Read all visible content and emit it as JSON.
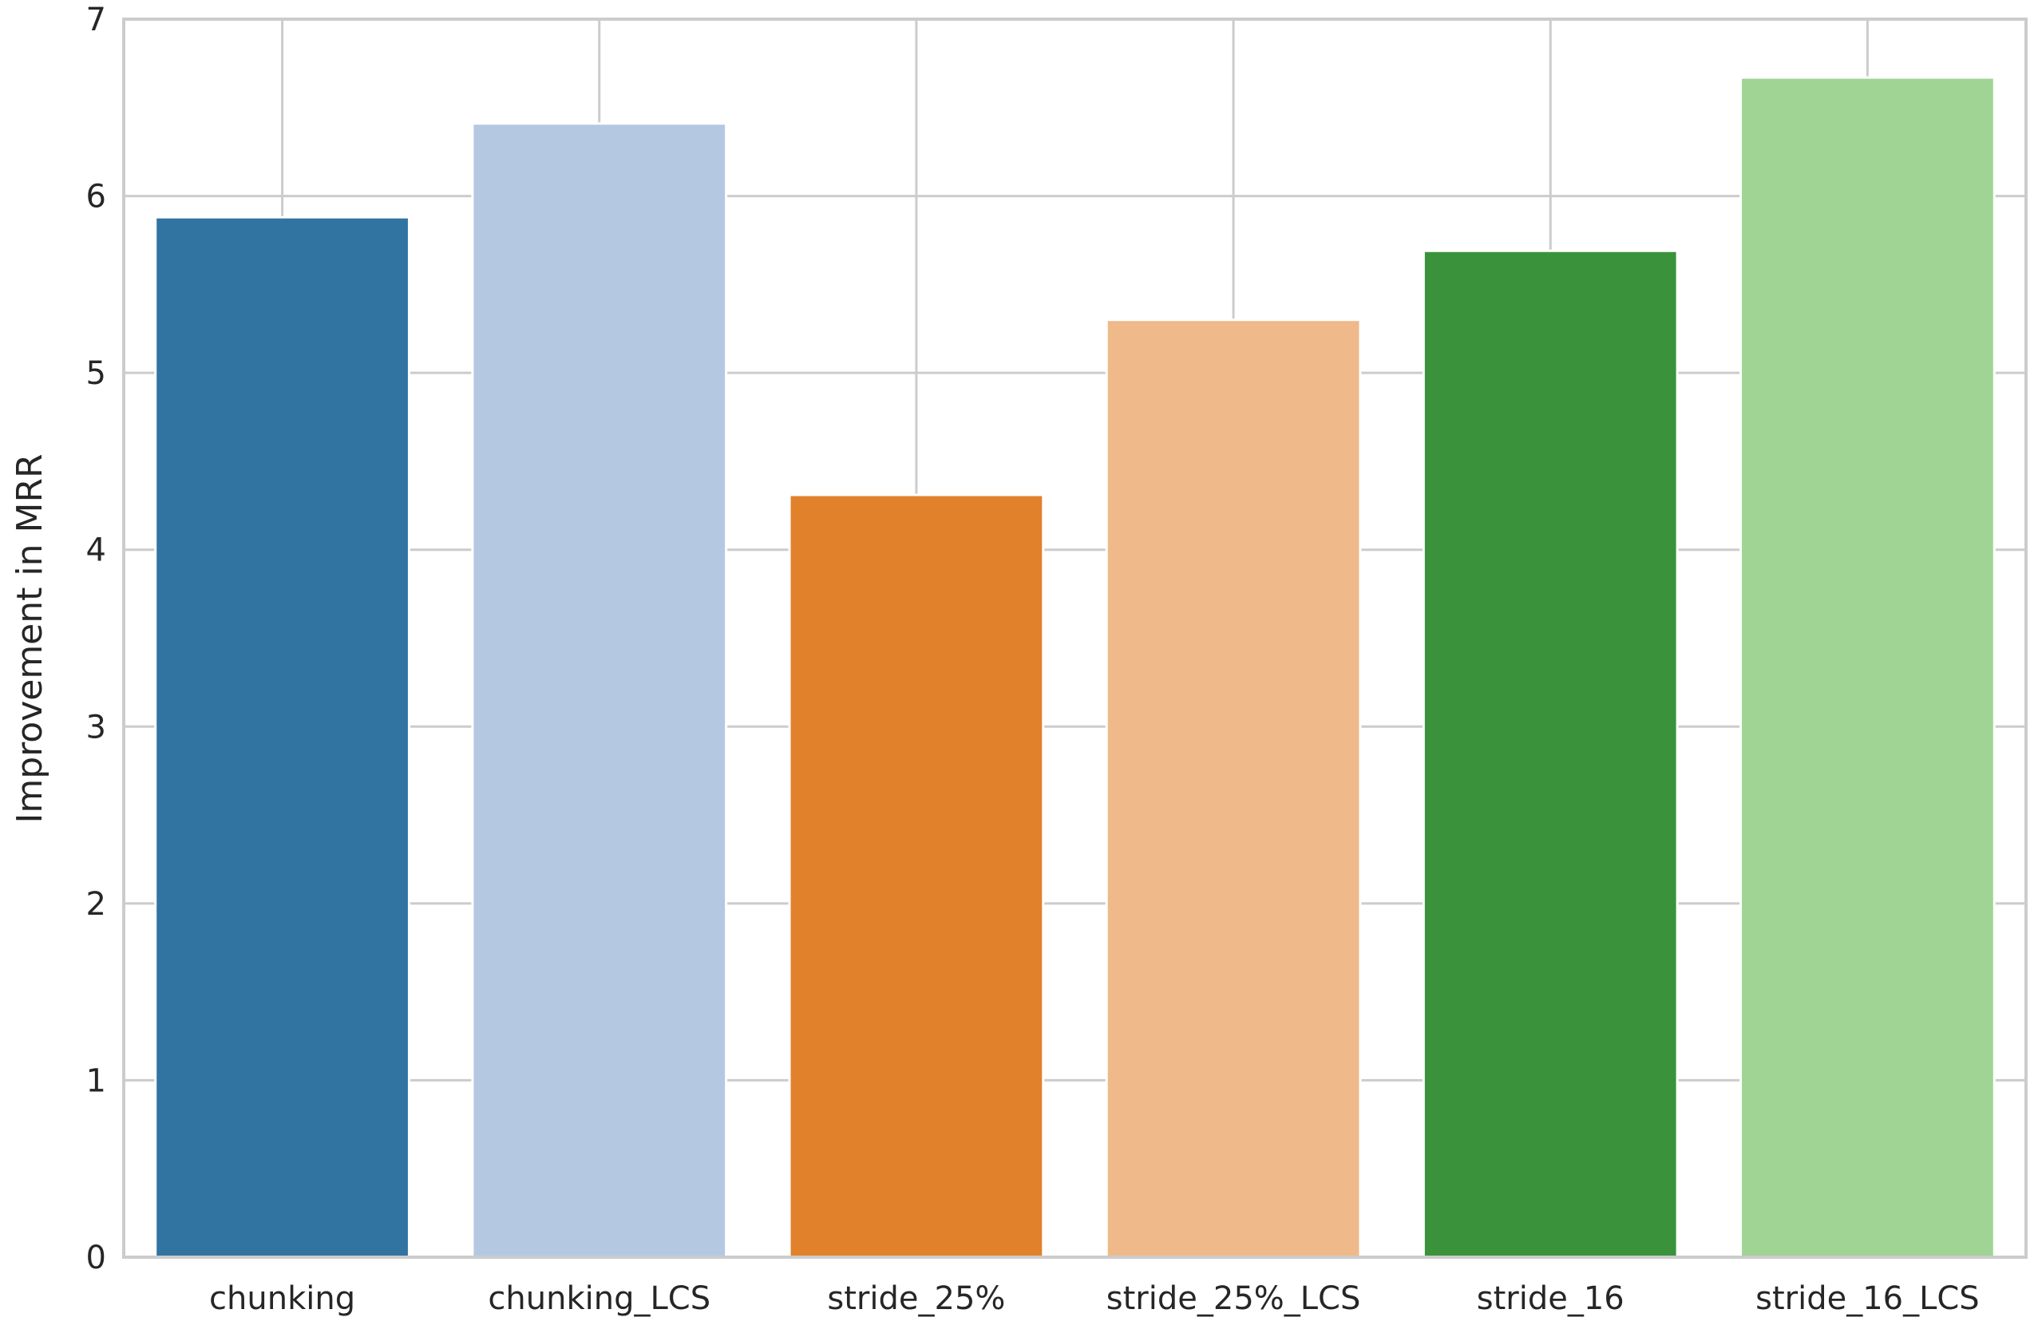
{
  "chart_data": {
    "type": "bar",
    "title": "",
    "xlabel": "",
    "ylabel": "Improvement in MRR",
    "categories": [
      "chunking",
      "chunking_LCS",
      "stride_25%",
      "stride_25%_LCS",
      "stride_16",
      "stride_16_LCS"
    ],
    "values": [
      5.88,
      6.41,
      4.31,
      5.3,
      5.69,
      6.67
    ],
    "colors": [
      "#3274a1",
      "#b4c8e1",
      "#e1812c",
      "#efb98a",
      "#3a923a",
      "#a0d494"
    ],
    "ylim": [
      0,
      7
    ],
    "yticks": [
      "0",
      "1",
      "2",
      "3",
      "4",
      "5",
      "6",
      "7"
    ],
    "grid": true,
    "legend": "none"
  }
}
